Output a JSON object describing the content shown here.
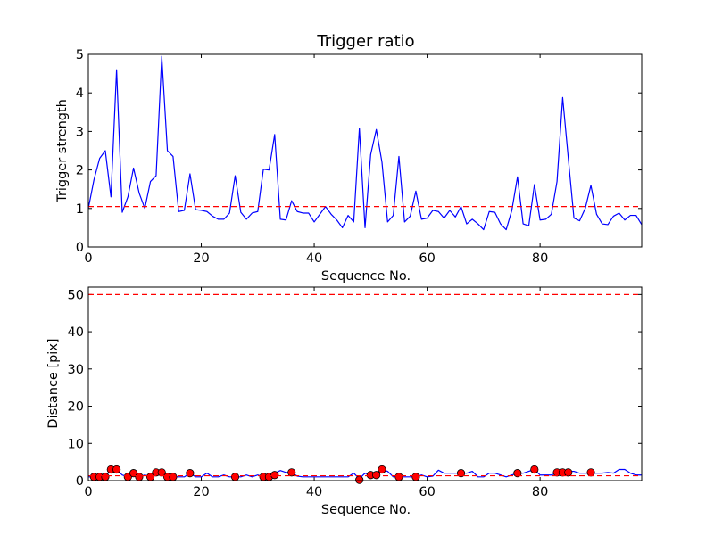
{
  "chart_data": [
    {
      "type": "line",
      "title": "Trigger ratio",
      "xlabel": "Sequence No.",
      "ylabel": "Trigger strength",
      "xlim": [
        0,
        98
      ],
      "ylim": [
        0,
        5
      ],
      "xticks": [
        "0",
        "20",
        "40",
        "60",
        "80"
      ],
      "xtick_values": [
        0,
        20,
        40,
        60,
        80
      ],
      "yticks": [
        "0",
        "1",
        "2",
        "3",
        "4",
        "5"
      ],
      "ytick_values": [
        0,
        1,
        2,
        3,
        4,
        5
      ],
      "grid": false,
      "series": [
        {
          "color": "#0000ff",
          "style": "solid",
          "x": [
            0,
            1,
            2,
            3,
            4,
            5,
            6,
            7,
            8,
            9,
            10,
            11,
            12,
            13,
            14,
            15,
            16,
            17,
            18,
            19,
            20,
            21,
            22,
            23,
            24,
            25,
            26,
            27,
            28,
            29,
            30,
            31,
            32,
            33,
            34,
            35,
            36,
            37,
            38,
            39,
            40,
            41,
            42,
            43,
            44,
            45,
            46,
            47,
            48,
            49,
            50,
            51,
            52,
            53,
            54,
            55,
            56,
            57,
            58,
            59,
            60,
            61,
            62,
            63,
            64,
            65,
            66,
            67,
            68,
            69,
            70,
            71,
            72,
            73,
            74,
            75,
            76,
            77,
            78,
            79,
            80,
            81,
            82,
            83,
            84,
            85,
            86,
            87,
            88,
            89,
            90,
            91,
            92,
            93,
            94,
            95,
            96,
            97,
            98
          ],
          "y": [
            1.0,
            1.75,
            2.3,
            2.5,
            1.3,
            4.6,
            0.9,
            1.3,
            2.05,
            1.4,
            1.0,
            1.7,
            1.85,
            4.95,
            2.5,
            2.35,
            0.92,
            0.95,
            1.9,
            0.97,
            0.95,
            0.92,
            0.8,
            0.72,
            0.72,
            0.88,
            1.85,
            0.9,
            0.72,
            0.88,
            0.92,
            2.02,
            2.0,
            2.92,
            0.72,
            0.7,
            1.2,
            0.92,
            0.88,
            0.88,
            0.65,
            0.85,
            1.05,
            0.85,
            0.7,
            0.5,
            0.82,
            0.65,
            3.08,
            0.5,
            2.4,
            3.05,
            2.2,
            0.65,
            0.82,
            2.35,
            0.65,
            0.8,
            1.45,
            0.72,
            0.75,
            0.95,
            0.92,
            0.75,
            0.95,
            0.78,
            1.05,
            0.6,
            0.72,
            0.6,
            0.45,
            0.92,
            0.9,
            0.6,
            0.45,
            0.95,
            1.82,
            0.6,
            0.55,
            1.62,
            0.7,
            0.72,
            0.85,
            1.7,
            3.88,
            2.3,
            0.75,
            0.68,
            1.0,
            1.6,
            0.85,
            0.6,
            0.58,
            0.8,
            0.88,
            0.7,
            0.82,
            0.82,
            0.58
          ]
        },
        {
          "color": "#ff0000",
          "style": "dashed",
          "x": [
            0,
            98
          ],
          "y": [
            1.05,
            1.05
          ]
        }
      ]
    },
    {
      "type": "line",
      "title": "",
      "xlabel": "Sequence No.",
      "ylabel": "Distance [pix]",
      "xlim": [
        0,
        98
      ],
      "ylim": [
        0,
        52
      ],
      "xticks": [
        "0",
        "20",
        "40",
        "60",
        "80"
      ],
      "xtick_values": [
        0,
        20,
        40,
        60,
        80
      ],
      "yticks": [
        "0",
        "10",
        "20",
        "30",
        "40",
        "50"
      ],
      "ytick_values": [
        0,
        10,
        20,
        30,
        40,
        50
      ],
      "grid": false,
      "series": [
        {
          "color": "#0000ff",
          "style": "solid",
          "x": [
            0,
            1,
            2,
            3,
            4,
            5,
            6,
            7,
            8,
            9,
            10,
            11,
            12,
            13,
            14,
            15,
            16,
            17,
            18,
            19,
            20,
            21,
            22,
            23,
            24,
            25,
            26,
            27,
            28,
            29,
            30,
            31,
            32,
            33,
            34,
            35,
            36,
            37,
            38,
            39,
            40,
            41,
            42,
            43,
            44,
            45,
            46,
            47,
            48,
            49,
            50,
            51,
            52,
            53,
            54,
            55,
            56,
            57,
            58,
            59,
            60,
            61,
            62,
            63,
            64,
            65,
            66,
            67,
            68,
            69,
            70,
            71,
            72,
            73,
            74,
            75,
            76,
            77,
            78,
            79,
            80,
            81,
            82,
            83,
            84,
            85,
            86,
            87,
            88,
            89,
            90,
            91,
            92,
            93,
            94,
            95,
            96,
            97,
            98
          ],
          "y": [
            1.0,
            1.0,
            1.0,
            1.0,
            3.0,
            3.0,
            1.5,
            1.0,
            2.0,
            1.0,
            1.5,
            1.0,
            2.2,
            2.2,
            1.0,
            1.0,
            1.0,
            1.0,
            2.0,
            1.0,
            1.0,
            2.0,
            1.0,
            1.0,
            1.5,
            1.0,
            1.0,
            1.0,
            1.5,
            1.0,
            1.5,
            1.0,
            1.0,
            2.0,
            2.7,
            2.2,
            2.2,
            1.2,
            1.0,
            1.0,
            1.0,
            1.0,
            1.0,
            1.0,
            1.0,
            1.0,
            1.0,
            2.0,
            0.5,
            2.0,
            1.5,
            2.0,
            3.0,
            2.5,
            1.0,
            1.0,
            1.0,
            1.0,
            1.0,
            1.5,
            1.0,
            1.2,
            2.8,
            2.0,
            2.0,
            2.0,
            2.0,
            2.0,
            2.5,
            1.0,
            1.0,
            2.0,
            2.0,
            1.5,
            1.0,
            1.5,
            2.0,
            2.0,
            2.5,
            3.0,
            1.5,
            1.5,
            1.5,
            2.0,
            2.0,
            2.5,
            2.5,
            2.0,
            2.0,
            2.0,
            2.0,
            2.0,
            2.2,
            2.0,
            3.0,
            3.0,
            2.0,
            1.5,
            1.5
          ]
        },
        {
          "name": "markers",
          "color": "#ff0000",
          "marker": "circle",
          "x": [
            1,
            2,
            3,
            4,
            5,
            7,
            8,
            9,
            11,
            12,
            13,
            14,
            15,
            18,
            26,
            31,
            32,
            33,
            36,
            48,
            50,
            51,
            52,
            55,
            58,
            66,
            76,
            79,
            83,
            84,
            85,
            89
          ],
          "y": [
            1.0,
            1.0,
            1.0,
            3.0,
            3.0,
            1.0,
            2.0,
            1.0,
            1.0,
            2.2,
            2.2,
            1.0,
            1.0,
            2.0,
            1.0,
            1.0,
            1.0,
            1.5,
            2.2,
            0.2,
            1.5,
            1.5,
            3.0,
            1.0,
            1.0,
            2.0,
            2.0,
            3.0,
            2.2,
            2.2,
            2.2,
            2.2
          ]
        },
        {
          "color": "#ff0000",
          "style": "dashed",
          "x": [
            0,
            98
          ],
          "y": [
            50,
            50
          ]
        },
        {
          "color": "#ff0000",
          "style": "dashed",
          "x": [
            0,
            98
          ],
          "y": [
            1.3,
            1.3
          ]
        }
      ]
    }
  ]
}
